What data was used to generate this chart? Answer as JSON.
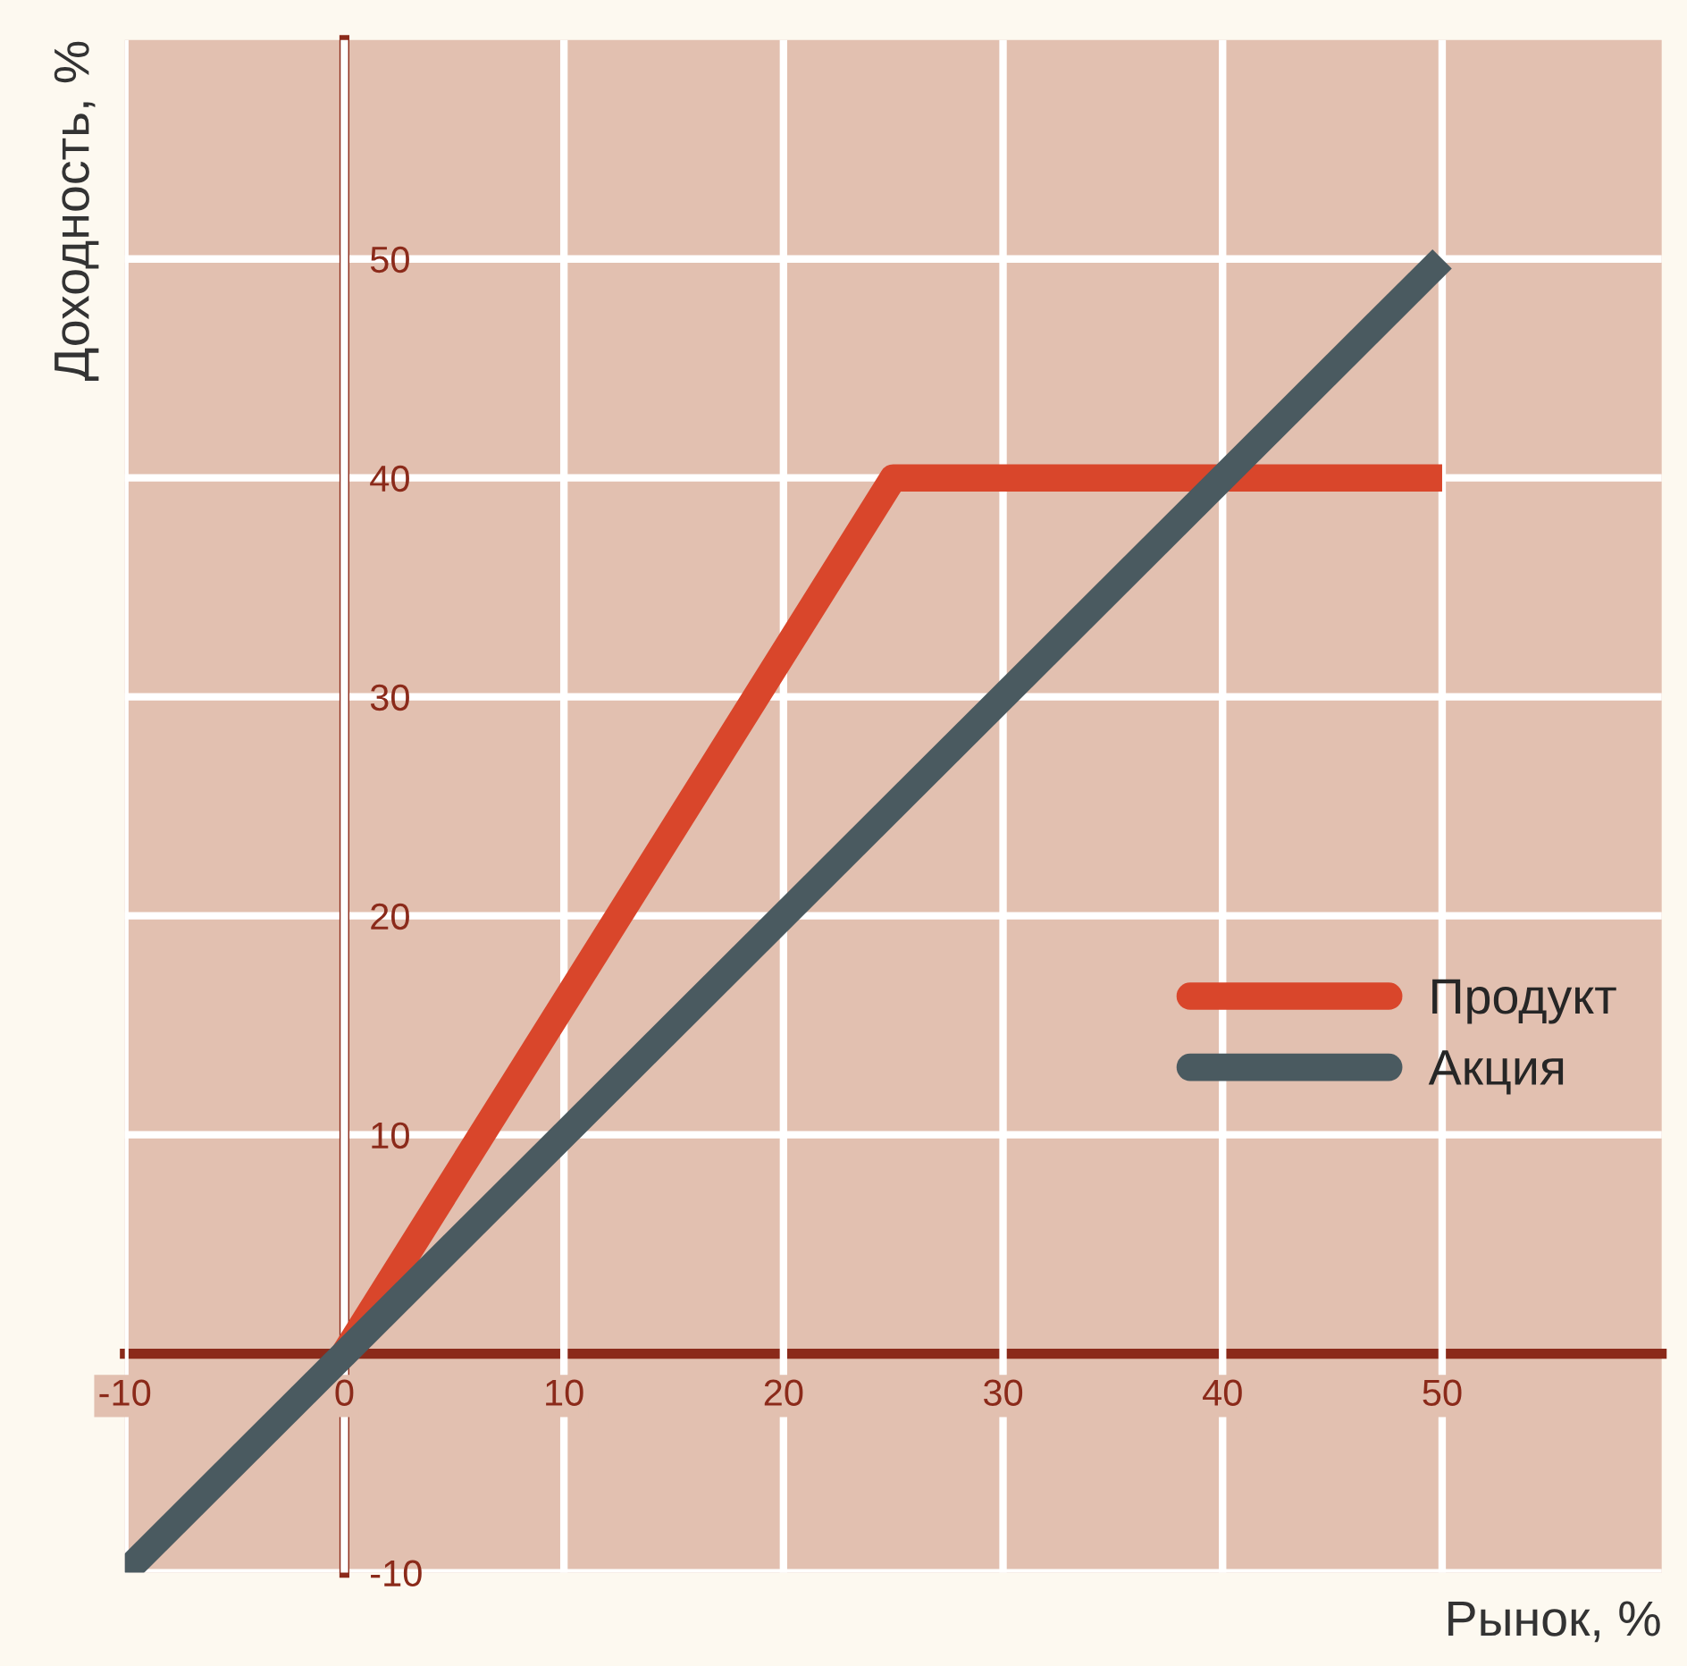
{
  "chart_data": {
    "type": "line",
    "xlabel": "Рынок, %",
    "ylabel": "Доходность, %",
    "xlim": [
      -10,
      60
    ],
    "ylim": [
      -10,
      60
    ],
    "xticks": [
      -10,
      0,
      10,
      20,
      30,
      40,
      50
    ],
    "yticks": [
      -10,
      10,
      20,
      30,
      40,
      50
    ],
    "grid": true,
    "legend": "right",
    "line_style": "solid",
    "marker": "none",
    "series": [
      {
        "name": "Продукт",
        "color": "#d9462b",
        "x": [
          0,
          25,
          50
        ],
        "values": [
          0,
          40,
          40
        ]
      },
      {
        "name": "Акция",
        "color": "#4a5a60",
        "x": [
          -10,
          50
        ],
        "values": [
          -10,
          50
        ]
      }
    ]
  }
}
